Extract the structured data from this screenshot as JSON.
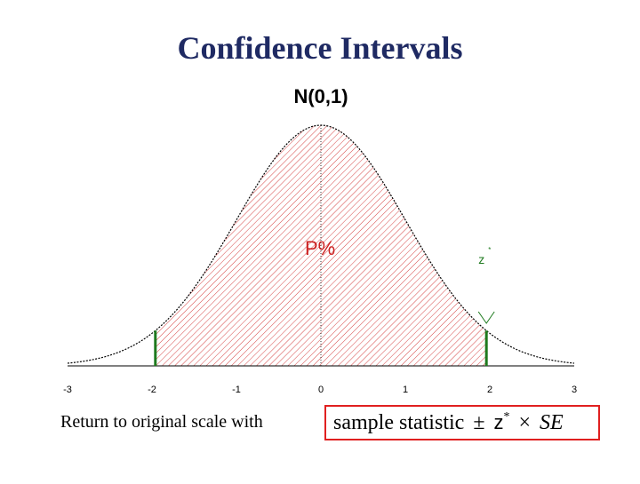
{
  "slide": {
    "title": "Confidence Intervals",
    "footer_text": "Return to original scale with"
  },
  "formula": {
    "part1": "sample statistic",
    "pm": "±",
    "z": "z",
    "star": "*",
    "times": "×",
    "se": "SE"
  },
  "chart_data": {
    "type": "area",
    "title": "N(0,1)",
    "distribution": "standard normal",
    "mean": 0,
    "sd": 1,
    "xlim": [
      -3,
      3
    ],
    "x_ticks": [
      -3,
      -2,
      -1,
      0,
      1,
      2,
      3
    ],
    "shaded_interval": [
      -1.96,
      1.96
    ],
    "shade_label": "P%",
    "critical_label": "z",
    "critical_sup": "*",
    "colors": {
      "shade": "#d64545",
      "interval_line": "#1e7a1e",
      "curve": "#000000",
      "labels_red": "#cc2222",
      "labels_green": "#1e7a1e"
    }
  }
}
